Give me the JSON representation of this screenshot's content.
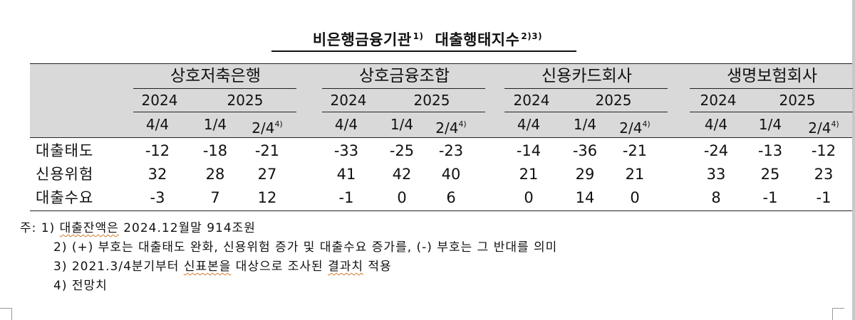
{
  "title": {
    "text": "비은행금융기관",
    "sup1": "1)",
    "text2": "대출행태지수",
    "sup2": "2)3)"
  },
  "groups": [
    {
      "name": "상호저축은행",
      "years": [
        "2024",
        "2025"
      ],
      "quarters": [
        {
          "q": "4/4",
          "sup": ""
        },
        {
          "q": "1/4",
          "sup": ""
        },
        {
          "q": "2/4",
          "sup": "4)"
        }
      ],
      "rows": [
        [
          "-12",
          "-18",
          "-21"
        ],
        [
          "32",
          "28",
          "27"
        ],
        [
          "-3",
          "7",
          "12"
        ]
      ]
    },
    {
      "name": "상호금융조합",
      "years": [
        "2024",
        "2025"
      ],
      "quarters": [
        {
          "q": "4/4",
          "sup": ""
        },
        {
          "q": "1/4",
          "sup": ""
        },
        {
          "q": "2/4",
          "sup": "4)"
        }
      ],
      "rows": [
        [
          "-33",
          "-25",
          "-23"
        ],
        [
          "41",
          "42",
          "40"
        ],
        [
          "-1",
          "0",
          "6"
        ]
      ]
    },
    {
      "name": "신용카드회사",
      "years": [
        "2024",
        "2025"
      ],
      "quarters": [
        {
          "q": "4/4",
          "sup": ""
        },
        {
          "q": "1/4",
          "sup": ""
        },
        {
          "q": "2/4",
          "sup": "4)"
        }
      ],
      "rows": [
        [
          "-14",
          "-36",
          "-21"
        ],
        [
          "21",
          "29",
          "21"
        ],
        [
          "0",
          "14",
          "0"
        ]
      ]
    },
    {
      "name": "생명보험회사",
      "years": [
        "2024",
        "2025"
      ],
      "quarters": [
        {
          "q": "4/4",
          "sup": ""
        },
        {
          "q": "1/4",
          "sup": ""
        },
        {
          "q": "2/4",
          "sup": "4)"
        }
      ],
      "rows": [
        [
          "-24",
          "-13",
          "-12"
        ],
        [
          "33",
          "25",
          "23"
        ],
        [
          "8",
          "-1",
          "-1"
        ]
      ]
    }
  ],
  "row_labels": [
    "대출태도",
    "신용위험",
    "대출수요"
  ],
  "notes": {
    "n1_prefix": "주: 1) ",
    "n1_under": "대출잔액은",
    "n1_rest": " 2024.12월말 914조원",
    "n2": "2) (+) 부호는 대출태도 완화, 신용위험 증가 및 대출수요 증가를, (-) 부호는 그 반대를 의미",
    "n3_a": "3) 2021.3/4분기부터 ",
    "n3_u1": "신표본을",
    "n3_b": " 대상으로 조사된 ",
    "n3_u2": "결과치",
    "n3_c": " 적용",
    "n4": "4) 전망치"
  }
}
